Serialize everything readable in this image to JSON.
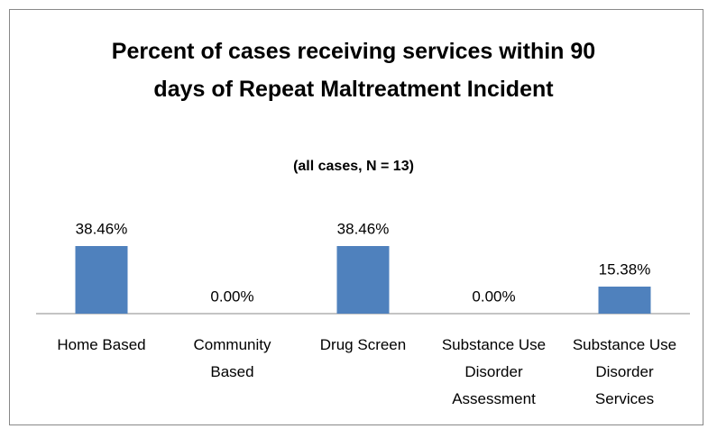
{
  "chart_data": {
    "type": "bar",
    "title": "Percent of cases receiving services within 90 days of Repeat Maltreatment Incident",
    "subtitle": "(all cases, N = 13)",
    "categories": [
      "Home Based",
      "Community Based",
      "Drug Screen",
      "Substance Use Disorder Assessment",
      "Substance Use Disorder Services"
    ],
    "values": [
      38.46,
      0,
      38.46,
      0,
      15.38
    ],
    "value_labels": [
      "38.46%",
      "0.00%",
      "38.46%",
      "0.00%",
      "15.38%"
    ],
    "color": "#4f81bd"
  }
}
